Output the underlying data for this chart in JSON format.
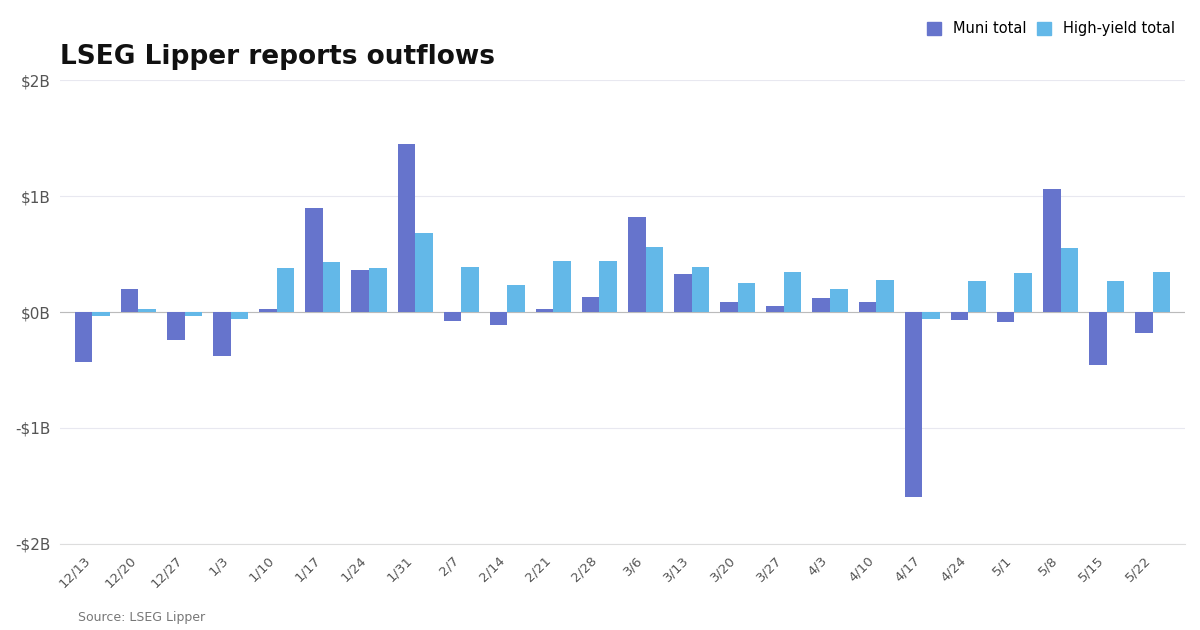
{
  "title": "LSEG Lipper reports outflows",
  "source": "Source: LSEG Lipper",
  "legend_labels": [
    "Muni total",
    "High-yield total"
  ],
  "muni_color": "#6674CC",
  "hy_color": "#63B8E8",
  "background_color": "#ffffff",
  "ylim": [
    -2000,
    2000
  ],
  "yticks": [
    -2000,
    -1000,
    0,
    1000,
    2000
  ],
  "ytick_labels": [
    "-$2B",
    "-$1B",
    "$0B",
    "$1B",
    "$2B"
  ],
  "dates": [
    "12/13",
    "12/20",
    "12/27",
    "1/3",
    "1/10",
    "1/17",
    "1/24",
    "1/31",
    "2/7",
    "2/14",
    "2/21",
    "2/28",
    "3/6",
    "3/13",
    "3/20",
    "3/27",
    "4/3",
    "4/10",
    "4/17",
    "4/24",
    "5/1",
    "5/8",
    "5/15",
    "5/22"
  ],
  "muni_values": [
    -430,
    200,
    -240,
    -380,
    30,
    900,
    360,
    1450,
    -75,
    -110,
    30,
    130,
    820,
    330,
    90,
    50,
    120,
    90,
    -1600,
    -70,
    -90,
    1060,
    -460,
    -180
  ],
  "hy_values": [
    -30,
    30,
    -30,
    -60,
    380,
    430,
    380,
    680,
    390,
    230,
    440,
    440,
    560,
    390,
    250,
    350,
    200,
    280,
    -60,
    270,
    340,
    550,
    270,
    350
  ],
  "bar_width": 0.38
}
